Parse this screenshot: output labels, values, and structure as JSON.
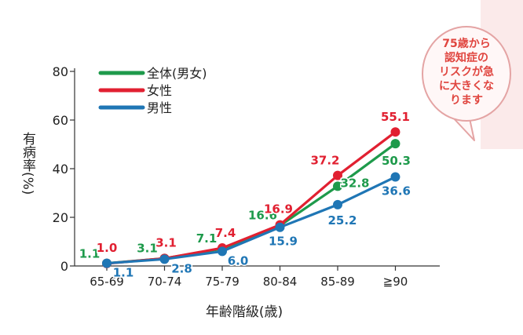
{
  "callout_text": "75歳から\n認知症の\nリスクが急\nに大きくな\nります",
  "chart_data": {
    "type": "line",
    "title": "",
    "xlabel": "年齢階級(歳)",
    "ylabel": "有病率(%)",
    "ylim": [
      0,
      80
    ],
    "yticks": [
      "0",
      "20",
      "40",
      "60",
      "80"
    ],
    "categories": [
      "65-69",
      "70-74",
      "75-79",
      "80-84",
      "85-89",
      "≧90"
    ],
    "legend_position": "top-left",
    "grid": false,
    "series": [
      {
        "name": "全体(男女)",
        "color": "#1e9a4b",
        "values": [
          1.1,
          3.1,
          7.1,
          16.6,
          32.8,
          50.3
        ],
        "labels": [
          "1.1",
          "3.1",
          "7.1",
          "16.6",
          "32.8",
          "50.3"
        ]
      },
      {
        "name": "女性",
        "color": "#e12031",
        "values": [
          1.0,
          3.1,
          7.4,
          16.9,
          37.2,
          55.1
        ],
        "labels": [
          "1.0",
          "3.1",
          "7.4",
          "16.9",
          "37.2",
          "55.1"
        ]
      },
      {
        "name": "男性",
        "color": "#1f76b5",
        "values": [
          1.1,
          2.8,
          6.0,
          15.9,
          25.2,
          36.6
        ],
        "labels": [
          "1.1",
          "2.8",
          "6.0",
          "15.9",
          "25.2",
          "36.6"
        ]
      }
    ]
  }
}
